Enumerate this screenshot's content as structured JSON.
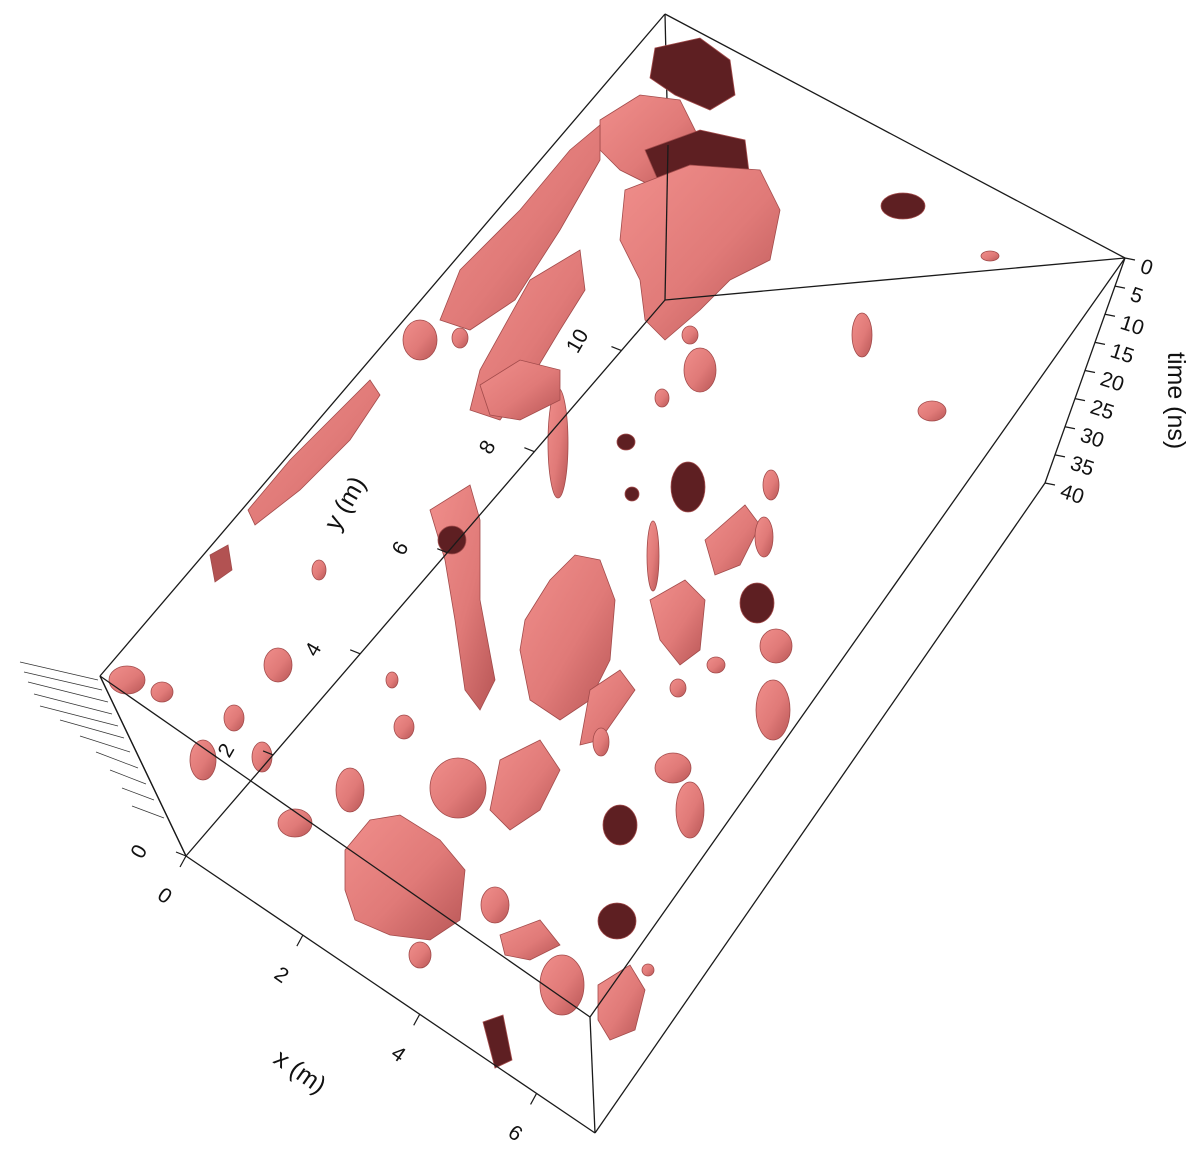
{
  "chart_data": {
    "type": "3d-isosurface",
    "title": "",
    "axes": {
      "x": {
        "label": "x (m)",
        "ticks": [
          "0",
          "2",
          "4",
          "6"
        ],
        "range": [
          0,
          7
        ]
      },
      "y": {
        "label": "y (m)",
        "ticks": [
          "0",
          "2",
          "4",
          "6",
          "8",
          "10"
        ],
        "range": [
          0,
          11
        ]
      },
      "z": {
        "label": "time (ns)",
        "ticks": [
          "0",
          "5",
          "10",
          "15",
          "20",
          "25",
          "30",
          "35",
          "40"
        ],
        "range": [
          0,
          40
        ]
      }
    },
    "colors": {
      "surface_light": "#e07a78",
      "surface_dark": "#5e1f22",
      "edge": "#1a1a1a"
    }
  }
}
